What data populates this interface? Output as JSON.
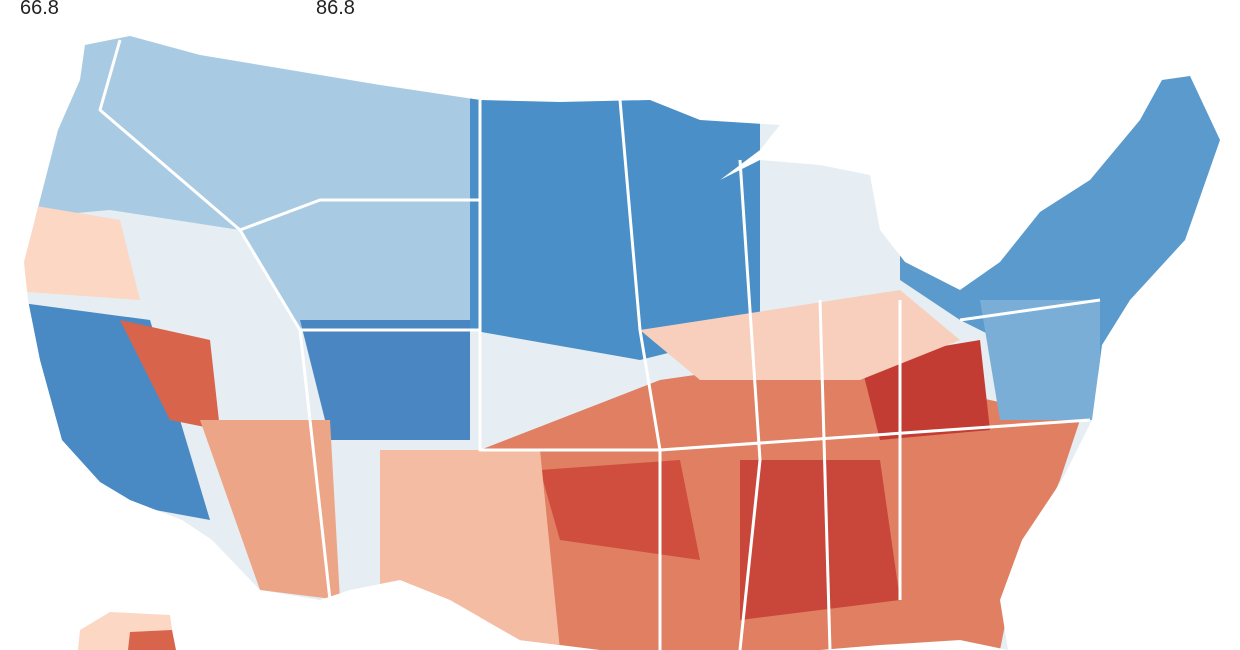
{
  "legend": {
    "ticks": [
      66.8,
      86.8
    ]
  }
}
